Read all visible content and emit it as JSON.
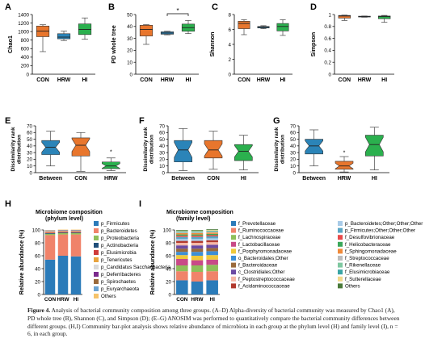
{
  "colors": {
    "orange": "#e8762d",
    "blue": "#2b84b8",
    "green": "#2bb04e",
    "gray": "#bbbbbb"
  },
  "groups": [
    "CON",
    "HRW",
    "HI"
  ],
  "charts": [
    {
      "panel": "A",
      "type": "box",
      "ylabel": "Chao1",
      "ylim": [
        0,
        1400
      ],
      "yticks": [
        0,
        200,
        400,
        600,
        800,
        1000,
        1200,
        1400
      ],
      "categories": [
        "CON",
        "HRW",
        "HI"
      ],
      "boxes": [
        {
          "min": 530,
          "q1": 880,
          "median": 1010,
          "q3": 1130,
          "max": 1160,
          "color": "orange"
        },
        {
          "min": 790,
          "q1": 830,
          "median": 870,
          "q3": 950,
          "max": 1010,
          "color": "blue"
        },
        {
          "min": 820,
          "q1": 930,
          "median": 1050,
          "q3": 1180,
          "max": 1320,
          "color": "green"
        }
      ],
      "notch": false,
      "sig": []
    },
    {
      "panel": "B",
      "type": "box",
      "ylabel": "PD whole tree",
      "ylim": [
        0,
        50
      ],
      "yticks": [
        0,
        10,
        20,
        30,
        40,
        50
      ],
      "categories": [
        "CON",
        "HRW",
        "HI"
      ],
      "boxes": [
        {
          "min": 25,
          "q1": 32,
          "median": 37.5,
          "q3": 41,
          "max": 41.5,
          "color": "orange"
        },
        {
          "min": 33,
          "q1": 33.5,
          "median": 34.5,
          "q3": 35.5,
          "max": 36,
          "color": "blue"
        },
        {
          "min": 34,
          "q1": 36,
          "median": 39,
          "q3": 42,
          "max": 45,
          "color": "green"
        }
      ],
      "notch": false,
      "sig": [
        {
          "from": 1,
          "to": 2,
          "label": "*"
        }
      ]
    },
    {
      "panel": "C",
      "type": "box",
      "ylabel": "Shannon",
      "ylim": [
        0,
        8
      ],
      "yticks": [
        0,
        2,
        4,
        6,
        8
      ],
      "categories": [
        "CON",
        "HRW",
        "HI"
      ],
      "boxes": [
        {
          "min": 5.3,
          "q1": 6.1,
          "median": 6.8,
          "q3": 7.1,
          "max": 7.3,
          "color": "orange"
        },
        {
          "min": 6.1,
          "q1": 6.2,
          "median": 6.3,
          "q3": 6.4,
          "max": 6.5,
          "color": "blue"
        },
        {
          "min": 5.2,
          "q1": 5.8,
          "median": 6.4,
          "q3": 6.8,
          "max": 7.3,
          "color": "green"
        }
      ],
      "notch": false,
      "sig": []
    },
    {
      "panel": "D",
      "type": "box",
      "ylabel": "Simpson",
      "ylim": [
        0.0,
        1.0
      ],
      "yticks": [
        0.0,
        0.2,
        0.4,
        0.6,
        0.8,
        1.0
      ],
      "categories": [
        "CON",
        "HRW",
        "HI"
      ],
      "boxes": [
        {
          "min": 0.9,
          "q1": 0.94,
          "median": 0.975,
          "q3": 0.985,
          "max": 0.99,
          "color": "orange"
        },
        {
          "min": 0.955,
          "q1": 0.96,
          "median": 0.965,
          "q3": 0.972,
          "max": 0.975,
          "color": "blue"
        },
        {
          "min": 0.87,
          "q1": 0.93,
          "median": 0.965,
          "q3": 0.975,
          "max": 0.985,
          "color": "green"
        }
      ],
      "notch": false,
      "sig": []
    },
    {
      "panel": "E",
      "type": "box",
      "ylabel": "Dissimilarity rank distribution",
      "ylim": [
        0,
        70
      ],
      "yticks": [
        0,
        10,
        20,
        30,
        40,
        50,
        60,
        70
      ],
      "categories": [
        "Between",
        "CON",
        "HRW"
      ],
      "boxes": [
        {
          "min": 10,
          "q1": 27,
          "median": 38,
          "q3": 48,
          "max": 62,
          "color": "blue"
        },
        {
          "min": 2,
          "q1": 25,
          "median": 41,
          "q3": 52,
          "max": 60,
          "color": "orange"
        },
        {
          "min": 3,
          "q1": 6,
          "median": 10,
          "q3": 16,
          "max": 22,
          "color": "green",
          "outlier": 32
        }
      ],
      "notch": true,
      "sig": []
    },
    {
      "panel": "F",
      "type": "box",
      "ylabel": "Dissimilarity rank distribution",
      "ylim": [
        0,
        70
      ],
      "yticks": [
        0,
        10,
        20,
        30,
        40,
        50,
        60,
        70
      ],
      "categories": [
        "Between",
        "CON",
        "HI"
      ],
      "boxes": [
        {
          "min": 3,
          "q1": 16,
          "median": 34,
          "q3": 48,
          "max": 66,
          "color": "blue"
        },
        {
          "min": 5,
          "q1": 22,
          "median": 34,
          "q3": 48,
          "max": 62,
          "color": "orange"
        },
        {
          "min": 4,
          "q1": 18,
          "median": 32,
          "q3": 42,
          "max": 56,
          "color": "green"
        }
      ],
      "notch": true,
      "sig": []
    },
    {
      "panel": "G",
      "type": "box",
      "ylabel": "Dissimilarity rank distribution",
      "ylim": [
        0,
        70
      ],
      "yticks": [
        0,
        10,
        20,
        30,
        40,
        50,
        60,
        70
      ],
      "categories": [
        "Between",
        "HRW",
        "HI"
      ],
      "boxes": [
        {
          "min": 10,
          "q1": 28,
          "median": 40,
          "q3": 50,
          "max": 64,
          "color": "blue"
        },
        {
          "min": 1,
          "q1": 5,
          "median": 10,
          "q3": 17,
          "max": 24,
          "color": "orange",
          "outlier": 31
        },
        {
          "min": 4,
          "q1": 25,
          "median": 42,
          "q3": 56,
          "max": 68,
          "color": "green"
        }
      ],
      "notch": true,
      "sig": []
    },
    {
      "panel": "H",
      "type": "stacked_bar",
      "title_lines": [
        "Microbiome composition",
        "(phylum level)"
      ],
      "ylabel": "Relative abundance (%)",
      "ylim": [
        0,
        100
      ],
      "yticks": [
        0,
        20,
        40,
        60,
        80,
        100
      ],
      "categories": [
        "CON",
        "HRW",
        "HI"
      ],
      "series": [
        {
          "name": "p_Firmicutes",
          "color": "#2b7bb9",
          "values": [
            54,
            60,
            59
          ]
        },
        {
          "name": "p_Bacteroidetes",
          "color": "#f0836a",
          "values": [
            38,
            33,
            34
          ]
        },
        {
          "name": "p_Proteobacteria",
          "color": "#8fbf5a",
          "values": [
            2,
            2,
            2
          ]
        },
        {
          "name": "p_Actinobacteria",
          "color": "#1f4e79",
          "values": [
            1,
            1,
            1
          ]
        },
        {
          "name": "p_Elusimicrobia",
          "sup": "1**, 2*",
          "color": "#cf3a3a",
          "values": [
            1,
            1,
            1
          ]
        },
        {
          "name": "p_Tenericutes",
          "sup": "3*",
          "color": "#e8a33d",
          "values": [
            1,
            1,
            1
          ]
        },
        {
          "name": "p_Candidatus Saccharibacteria",
          "color": "#d9d9d9",
          "values": [
            1,
            0.5,
            0.5
          ]
        },
        {
          "name": "p_Deferribacteres",
          "sup": "3*",
          "color": "#7b2a8c",
          "values": [
            0.5,
            0.5,
            0.5
          ]
        },
        {
          "name": "p_Spirochaetes",
          "sup": "3*",
          "color": "#9a6a3c",
          "values": [
            0.5,
            0.5,
            0.5
          ]
        },
        {
          "name": "p_Euryarchaeota",
          "sup": "1**, 3*",
          "color": "#6aa3d3",
          "values": [
            0.5,
            0.5,
            0.5
          ]
        },
        {
          "name": "Others",
          "color": "#f5c36b",
          "values": [
            0.5,
            0.5,
            0.5
          ]
        }
      ]
    },
    {
      "panel": "I",
      "type": "stacked_bar",
      "title_lines": [
        "Microbiome composition",
        "(family level)"
      ],
      "ylabel": "Relative abundance (%)",
      "ylim": [
        0,
        100
      ],
      "yticks": [
        0,
        20,
        40,
        60,
        80,
        100
      ],
      "categories": [
        "CON",
        "HRW",
        "HI"
      ],
      "series": [
        {
          "name": "f_Prevotellaceae",
          "color": "#2b7bb9",
          "values": [
            22,
            20,
            22
          ]
        },
        {
          "name": "f_Ruminococcaceae",
          "color": "#f0836a",
          "values": [
            14,
            15,
            14
          ]
        },
        {
          "name": "f_Lachnospiraceae",
          "color": "#8fbf5a",
          "values": [
            9,
            10,
            10
          ]
        },
        {
          "name": "f_Lactobacillaceae",
          "sup": "1*, 3**",
          "color": "#c94a88",
          "values": [
            10,
            8,
            8
          ]
        },
        {
          "name": "f_Porphyromonadaceae",
          "sup": "1*",
          "color": "#f0c93a",
          "values": [
            6,
            7,
            7
          ]
        },
        {
          "name": "o_Bacteroidales;Other",
          "sup": "1**, 3**",
          "color": "#3d8fd6",
          "values": [
            5,
            6,
            6
          ]
        },
        {
          "name": "f_Bacteroidaceae",
          "sup": "1**",
          "color": "#9a6a3c",
          "values": [
            5,
            5,
            5
          ]
        },
        {
          "name": "c_Clostridiales;Other",
          "color": "#6b4aa3",
          "values": [
            5,
            5,
            5
          ]
        },
        {
          "name": "f_Peptostreptococcaceae",
          "sup": "1**, 3**",
          "color": "#f6b8a6",
          "values": [
            4,
            4,
            4
          ]
        },
        {
          "name": "f_Acidaminococcaceae",
          "sup": "3*",
          "color": "#b23a2e",
          "values": [
            3,
            3,
            3
          ]
        },
        {
          "name": "p_Bacteroidetes;Other;Other;Other",
          "color": "#a8cbe8",
          "values": [
            3,
            3,
            3
          ]
        },
        {
          "name": "p_Firmicutes;Other;Other;Other",
          "color": "#5aa6c4",
          "values": [
            3,
            3,
            3
          ]
        },
        {
          "name": "f_Desulfovibrionaceae",
          "sup": "3*",
          "color": "#e84a4a",
          "values": [
            2,
            2,
            2
          ]
        },
        {
          "name": "f_Helicobacteraceae",
          "color": "#3aa85a",
          "values": [
            2,
            2,
            2
          ]
        },
        {
          "name": "f_Sphingomonadaceae",
          "sup": "3*",
          "color": "#f08a3a",
          "values": [
            2,
            2,
            2
          ]
        },
        {
          "name": "f_Streptococcaceae",
          "color": "#bdbdbd",
          "values": [
            1,
            1,
            1
          ]
        },
        {
          "name": "f_Rikenellaceae",
          "color": "#7ec8a0",
          "values": [
            1,
            1,
            1
          ]
        },
        {
          "name": "f_Elusimicrobiaceae",
          "sup": "1**, 2*",
          "color": "#3aa5a5",
          "values": [
            1,
            1,
            1
          ]
        },
        {
          "name": "f_Sutterellaceae",
          "color": "#f2d98a",
          "values": [
            1,
            1,
            1
          ]
        },
        {
          "name": "Others",
          "color": "#4a7a3a",
          "values": [
            1,
            1,
            1
          ]
        }
      ]
    }
  ],
  "caption": {
    "figure_label": "Figure 4.",
    "text": "Analysis of bacterial community composition among three groups. (A–D) Alpha-diversity of bacterial community was measured by Chao1 (A), PD whole tree (B), Shannon (C), and Simpson (D); (E–G) ANOSIM was performed to quantitatively compare the bacterial community differences between different groups. (H,I) Community bar-plot analysis shows relative abundance of microbiota in each group at the phylum level (H) and family level (I), n = 6, in each group."
  }
}
